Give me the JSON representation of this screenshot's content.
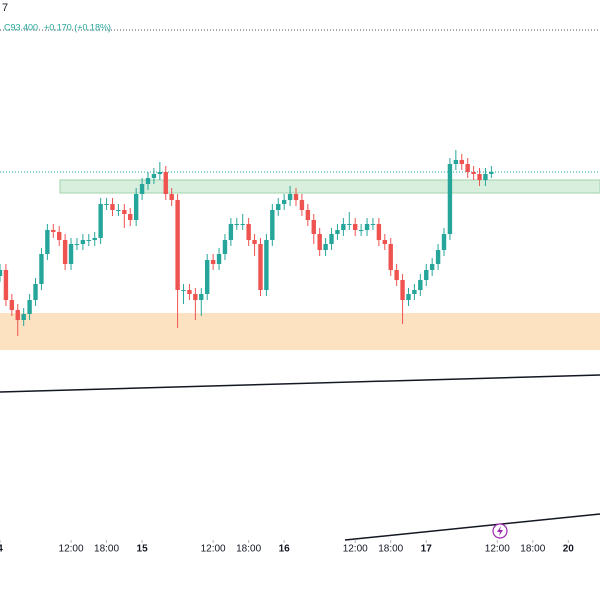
{
  "chart_data": {
    "type": "candlestick",
    "symbol_fragment": "7",
    "close_label": "C93.400",
    "change_label": "+0.170 (+0.18%)",
    "up_color": "#26a69a",
    "down_color": "#ef5350",
    "xlim": [
      0,
      101.35
    ],
    "ylim": [
      91.56,
      94.26
    ],
    "xticks": [
      {
        "value": 0,
        "label": "4"
      },
      {
        "value": 12,
        "label": "12:00"
      },
      {
        "value": 18,
        "label": "18:00"
      },
      {
        "value": 24,
        "label": "15"
      },
      {
        "value": 36,
        "label": "12:00"
      },
      {
        "value": 42,
        "label": "18:00"
      },
      {
        "value": 48,
        "label": "16"
      },
      {
        "value": 60,
        "label": "12:00"
      },
      {
        "value": 66,
        "label": "18:00"
      },
      {
        "value": 72,
        "label": "17"
      },
      {
        "value": 84,
        "label": "12:00"
      },
      {
        "value": 90,
        "label": "18:00"
      },
      {
        "value": 96,
        "label": "20"
      }
    ],
    "x": [
      0,
      1,
      2,
      3,
      4,
      5,
      6,
      7,
      8,
      9,
      10,
      11,
      12,
      13,
      14,
      15,
      16,
      17,
      18,
      19,
      20,
      21,
      22,
      23,
      24,
      25,
      26,
      27,
      28,
      29,
      30,
      31,
      32,
      33,
      34,
      35,
      36,
      37,
      38,
      39,
      40,
      41,
      42,
      43,
      44,
      45,
      46,
      47,
      48,
      49,
      50,
      51,
      52,
      53,
      54,
      55,
      56,
      57,
      58,
      59,
      60,
      61,
      62,
      63,
      64,
      65,
      66,
      67,
      68,
      69,
      70,
      71,
      72,
      73,
      74,
      75,
      76,
      77,
      78,
      79,
      80,
      81,
      82,
      83
    ],
    "open": [
      92.88,
      92.91,
      92.76,
      92.71,
      92.66,
      92.69,
      92.76,
      92.84,
      92.99,
      93.11,
      93.1,
      93.06,
      92.94,
      93.04,
      93.04,
      93.06,
      93.06,
      93.07,
      93.24,
      93.24,
      93.21,
      93.21,
      93.19,
      93.16,
      93.29,
      93.34,
      93.37,
      93.39,
      93.4,
      93.29,
      93.26,
      92.81,
      92.81,
      92.79,
      92.76,
      92.79,
      92.96,
      92.94,
      92.99,
      93.06,
      93.14,
      93.14,
      93.14,
      93.06,
      93.04,
      92.81,
      93.06,
      93.21,
      93.24,
      93.26,
      93.29,
      93.26,
      93.21,
      93.16,
      93.09,
      93.01,
      93.04,
      93.09,
      93.11,
      93.14,
      93.14,
      93.11,
      93.11,
      93.14,
      93.14,
      93.06,
      93.04,
      92.91,
      92.86,
      92.76,
      92.79,
      92.81,
      92.86,
      92.91,
      92.94,
      93.01,
      93.09,
      93.44,
      93.46,
      93.44,
      93.4,
      93.39,
      93.36,
      93.39
    ],
    "high": [
      92.94,
      92.94,
      92.79,
      92.74,
      92.72,
      92.79,
      92.87,
      93.02,
      93.14,
      93.14,
      93.13,
      93.09,
      93.07,
      93.07,
      93.09,
      93.09,
      93.1,
      93.27,
      93.27,
      93.27,
      93.24,
      93.24,
      93.22,
      93.32,
      93.37,
      93.4,
      93.42,
      93.45,
      93.43,
      93.32,
      93.29,
      92.84,
      92.84,
      92.82,
      92.82,
      92.99,
      92.99,
      93.02,
      93.09,
      93.17,
      93.17,
      93.19,
      93.17,
      93.09,
      93.07,
      93.09,
      93.24,
      93.27,
      93.29,
      93.33,
      93.32,
      93.29,
      93.24,
      93.19,
      93.12,
      93.07,
      93.12,
      93.14,
      93.17,
      93.2,
      93.17,
      93.14,
      93.17,
      93.17,
      93.17,
      93.09,
      93.07,
      92.94,
      92.89,
      92.82,
      92.84,
      92.89,
      92.94,
      92.97,
      93.04,
      93.12,
      93.47,
      93.51,
      93.49,
      93.47,
      93.43,
      93.42,
      93.42,
      93.43
    ],
    "low": [
      92.85,
      92.73,
      92.68,
      92.58,
      92.63,
      92.66,
      92.73,
      92.81,
      92.96,
      93.07,
      93.03,
      92.91,
      92.91,
      93.01,
      93.01,
      93.03,
      93.03,
      93.04,
      93.21,
      93.18,
      93.18,
      93.12,
      93.13,
      93.13,
      93.26,
      93.31,
      93.34,
      93.36,
      93.26,
      93.23,
      92.62,
      92.74,
      92.76,
      92.66,
      92.68,
      92.76,
      92.91,
      92.91,
      92.96,
      93.03,
      93.11,
      93.11,
      93.03,
      92.98,
      92.78,
      92.78,
      93.03,
      93.18,
      93.21,
      93.23,
      93.23,
      93.18,
      93.13,
      93.04,
      92.98,
      92.98,
      93.01,
      93.06,
      93.08,
      93.11,
      93.08,
      93.08,
      93.08,
      93.11,
      93.03,
      93.01,
      92.88,
      92.83,
      92.64,
      92.73,
      92.76,
      92.78,
      92.83,
      92.88,
      92.91,
      92.98,
      93.06,
      93.41,
      93.41,
      93.37,
      93.36,
      93.33,
      93.33,
      93.37
    ],
    "close": [
      92.91,
      92.76,
      92.71,
      92.66,
      92.69,
      92.76,
      92.84,
      92.99,
      93.11,
      93.1,
      93.06,
      92.94,
      93.04,
      93.04,
      93.06,
      93.06,
      93.07,
      93.24,
      93.24,
      93.21,
      93.21,
      93.19,
      93.16,
      93.29,
      93.34,
      93.37,
      93.39,
      93.4,
      93.29,
      93.26,
      92.81,
      92.81,
      92.79,
      92.76,
      92.79,
      92.96,
      92.94,
      92.99,
      93.06,
      93.14,
      93.14,
      93.14,
      93.06,
      93.04,
      92.81,
      93.06,
      93.21,
      93.24,
      93.26,
      93.29,
      93.26,
      93.21,
      93.16,
      93.09,
      93.01,
      93.04,
      93.09,
      93.11,
      93.14,
      93.14,
      93.11,
      93.11,
      93.14,
      93.14,
      93.06,
      93.04,
      92.91,
      92.86,
      92.76,
      92.79,
      92.81,
      92.86,
      92.91,
      92.94,
      93.01,
      93.09,
      93.44,
      93.46,
      93.44,
      93.4,
      93.39,
      93.36,
      93.39,
      93.4
    ]
  }
}
